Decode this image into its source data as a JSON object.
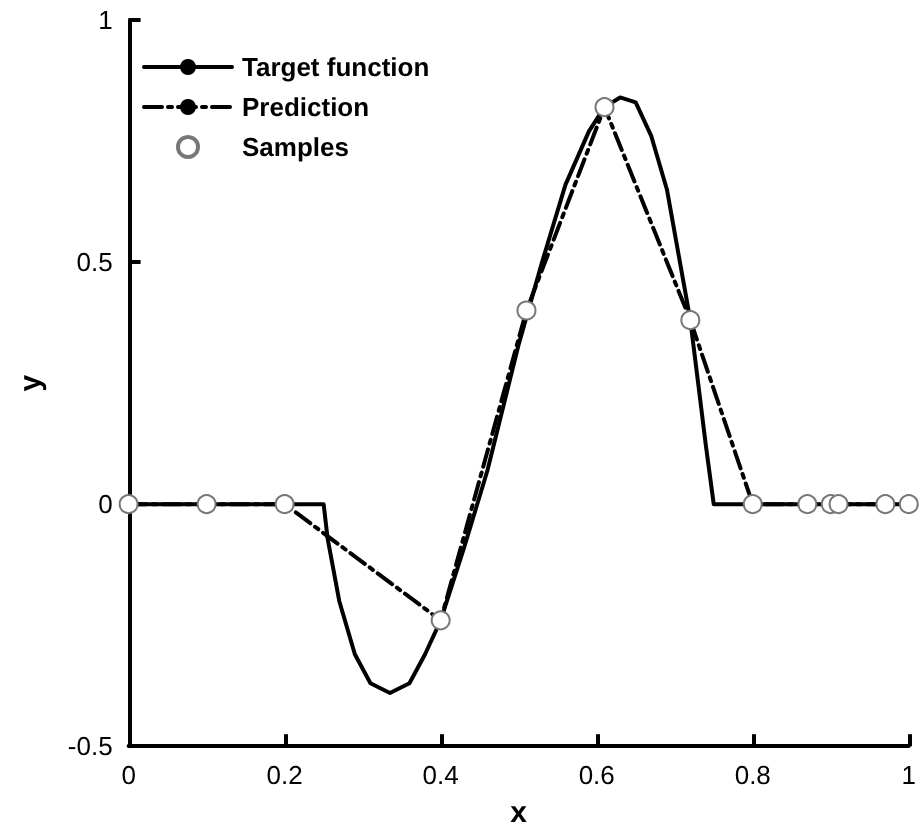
{
  "chart_data": {
    "type": "line",
    "xlabel": "x",
    "ylabel": "y",
    "xlim": [
      0,
      1
    ],
    "ylim": [
      -0.5,
      1
    ],
    "xticks": [
      0,
      0.2,
      0.4,
      0.6,
      0.8,
      1
    ],
    "yticks": [
      -0.5,
      0,
      0.5,
      1
    ],
    "grid": false,
    "legend": "top left",
    "series": [
      {
        "name": "Target function",
        "color": "#000000",
        "line_style": "solid",
        "marker": "none",
        "x": [
          0,
          0.25,
          0.255,
          0.27,
          0.29,
          0.31,
          0.335,
          0.36,
          0.38,
          0.4,
          0.43,
          0.46,
          0.5,
          0.53,
          0.56,
          0.59,
          0.61,
          0.63,
          0.65,
          0.67,
          0.69,
          0.71,
          0.72,
          0.73,
          0.74,
          0.75,
          1
        ],
        "values": [
          0,
          0,
          -0.07,
          -0.2,
          -0.31,
          -0.37,
          -0.39,
          -0.37,
          -0.31,
          -0.24,
          -0.09,
          0.07,
          0.33,
          0.5,
          0.66,
          0.77,
          0.82,
          0.84,
          0.83,
          0.76,
          0.65,
          0.47,
          0.38,
          0.25,
          0.12,
          0,
          0
        ]
      },
      {
        "name": "Prediction",
        "color": "#000000",
        "line_style": "dashed",
        "marker": "none",
        "x": [
          0,
          0.1,
          0.2,
          0.4,
          0.51,
          0.61,
          0.72,
          0.8,
          0.87,
          0.9,
          0.91,
          0.97,
          1
        ],
        "values": [
          0,
          0,
          0,
          -0.24,
          0.4,
          0.82,
          0.38,
          0,
          0,
          0,
          0,
          0,
          0
        ]
      },
      {
        "name": "Samples",
        "type": "scatter",
        "color": "#ffffff",
        "marker": "circle",
        "x": [
          0,
          0.1,
          0.2,
          0.4,
          0.51,
          0.61,
          0.72,
          0.8,
          0.87,
          0.9,
          0.91,
          0.97,
          1
        ],
        "values": [
          0,
          0,
          0,
          -0.24,
          0.4,
          0.82,
          0.38,
          0,
          0,
          0,
          0,
          0,
          0
        ]
      }
    ]
  }
}
